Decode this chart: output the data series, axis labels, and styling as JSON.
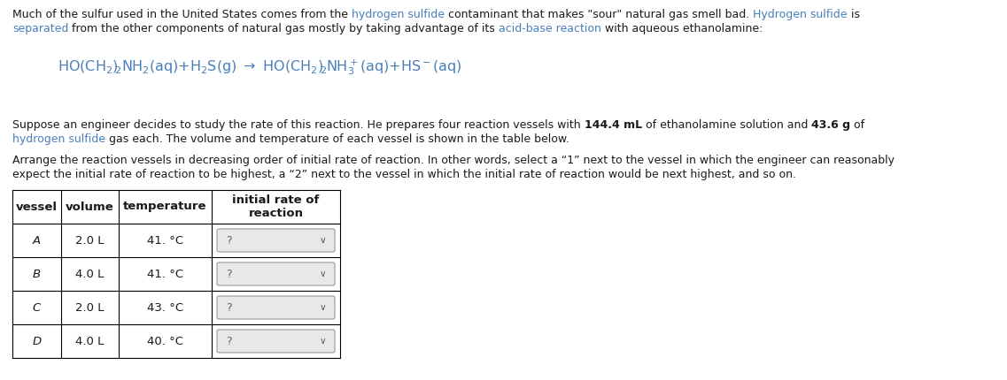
{
  "background_color": "#ffffff",
  "text_color": "#333333",
  "link_color": "#4a7fba",
  "font_size_body": 9.0,
  "font_size_eq": 11.5,
  "font_size_table": 9.5,
  "para1_parts": [
    [
      "black",
      "Much of the sulfur used in the United States comes from the "
    ],
    [
      "blue",
      "hydrogen sulfide"
    ],
    [
      "black",
      " contaminant that makes \"sour\" natural gas smell bad. "
    ],
    [
      "blue",
      "Hydrogen sulfide"
    ],
    [
      "black",
      " is"
    ]
  ],
  "para1_line2_parts": [
    [
      "blue",
      "separated"
    ],
    [
      "black",
      " from the other components of natural gas mostly by taking advantage of its "
    ],
    [
      "blue",
      "acid-base reaction"
    ],
    [
      "black",
      " with aqueous ethanolamine:"
    ]
  ],
  "para2_line1_parts": [
    [
      "black",
      "Suppose an engineer decides to study the rate of this reaction. He prepares four reaction vessels with "
    ],
    [
      "black_bold",
      "144.4 mL"
    ],
    [
      "black",
      " of ethanolamine solution and "
    ],
    [
      "black_bold",
      "43.6 g"
    ],
    [
      "black",
      " of"
    ]
  ],
  "para2_line2_parts": [
    [
      "blue",
      "hydrogen sulfide"
    ],
    [
      "black",
      " gas each. The volume and temperature of each vessel is shown in the table below."
    ]
  ],
  "para3_line1": "Arrange the reaction vessels in decreasing order of initial rate of reaction. In other words, select a “1” next to the vessel in which the engineer can reasonably",
  "para3_line2": "expect the initial rate of reaction to be highest, a “2” next to the vessel in which the initial rate of reaction would be next highest, and so on.",
  "table_vessels": [
    "A",
    "B",
    "C",
    "D"
  ],
  "table_volumes": [
    "2.0 L",
    "4.0 L",
    "2.0 L",
    "4.0 L"
  ],
  "table_temps": [
    "41. °C",
    "41. °C",
    "43. °C",
    "40. °C"
  ]
}
